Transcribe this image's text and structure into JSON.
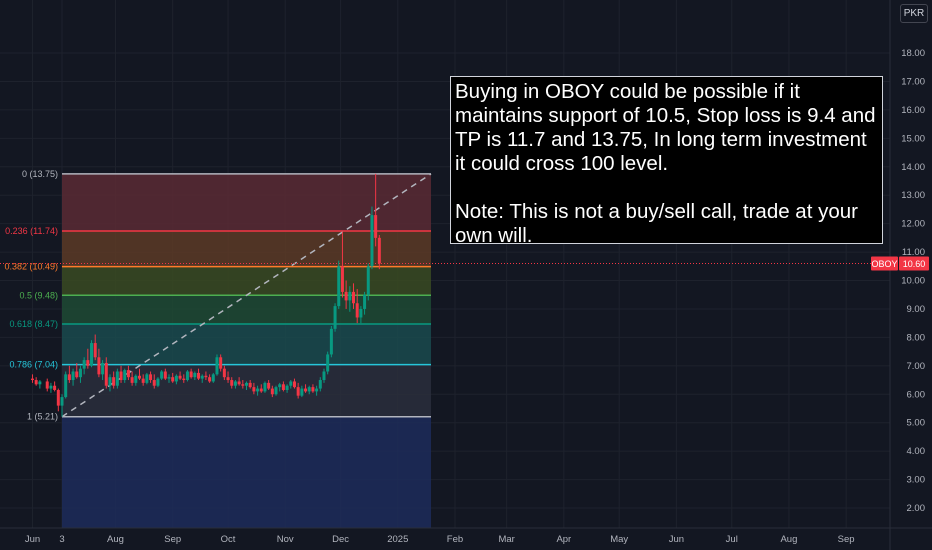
{
  "currency_button": "PKR",
  "note": {
    "paragraph1": "Buying in OBOY could be possible if it maintains support of 10.5, Stop loss is 9.4 and TP is 11.7 and 13.75, In long term investment it could cross 100 level.",
    "paragraph2": "Note: This is not a buy/sell call, trade at your own will."
  },
  "chart_data": {
    "type": "candlestick",
    "symbol": "OBOY",
    "last_price": "10.60",
    "y_ticks": [
      "2.00",
      "3.00",
      "4.00",
      "5.00",
      "6.00",
      "7.00",
      "8.00",
      "9.00",
      "10.00",
      "11.00",
      "12.00",
      "13.00",
      "14.00",
      "15.00",
      "16.00",
      "17.00",
      "18.00"
    ],
    "ylim": [
      1.6,
      18.6
    ],
    "x_ticks": [
      {
        "label": "Jun",
        "date": "2024-06-17"
      },
      {
        "label": "3",
        "date": "2024-07-03"
      },
      {
        "label": "Aug",
        "date": "2024-08-01"
      },
      {
        "label": "Sep",
        "date": "2024-09-01"
      },
      {
        "label": "Oct",
        "date": "2024-10-01"
      },
      {
        "label": "Nov",
        "date": "2024-11-01"
      },
      {
        "label": "Dec",
        "date": "2024-12-01"
      },
      {
        "label": "2025",
        "date": "2025-01-01"
      },
      {
        "label": "Feb",
        "date": "2025-02-01"
      },
      {
        "label": "Mar",
        "date": "2025-03-01"
      },
      {
        "label": "Apr",
        "date": "2025-04-01"
      },
      {
        "label": "May",
        "date": "2025-05-01"
      },
      {
        "label": "Jun",
        "date": "2025-06-01"
      },
      {
        "label": "Jul",
        "date": "2025-07-01"
      },
      {
        "label": "Aug",
        "date": "2025-08-01"
      },
      {
        "label": "Sep",
        "date": "2025-09-01"
      }
    ],
    "fibonacci": {
      "start_date": "2024-07-03",
      "end_date": "2025-01-19",
      "levels": [
        {
          "label": "0 (13.75)",
          "value": 13.75,
          "line": "#b2b5be",
          "fill": "#5a2a34"
        },
        {
          "label": "0.236 (11.74)",
          "value": 11.74,
          "line": "#f23645",
          "fill": "#5c3a26"
        },
        {
          "label": "0.382 (10.49)",
          "value": 10.49,
          "line": "#ff7b2b",
          "fill": "#3a4a22"
        },
        {
          "label": "0.5 (9.48)",
          "value": 9.48,
          "line": "#4caf50",
          "fill": "#1f4a34"
        },
        {
          "label": "0.618 (8.47)",
          "value": 8.47,
          "line": "#089981",
          "fill": "#1a4a4e"
        },
        {
          "label": "0.786 (7.04)",
          "value": 7.04,
          "line": "#26c6da",
          "fill": "#2a2e3c"
        },
        {
          "label": "1 (5.21)",
          "value": 5.21,
          "line": "#b2b5be",
          "fill": "#1d2c5a"
        }
      ]
    },
    "trend_line": {
      "from": {
        "date": "2024-07-03",
        "value": 5.21
      },
      "to": {
        "date": "2025-01-19",
        "value": 13.75
      }
    },
    "candles": [
      {
        "d": "2024-06-17",
        "o": 6.55,
        "h": 6.7,
        "l": 6.4,
        "c": 6.5
      },
      {
        "d": "2024-06-19",
        "o": 6.5,
        "h": 6.6,
        "l": 6.3,
        "c": 6.35
      },
      {
        "d": "2024-06-21",
        "o": 6.35,
        "h": 6.5,
        "l": 6.2,
        "c": 6.45
      },
      {
        "d": "2024-06-25",
        "o": 6.45,
        "h": 6.55,
        "l": 6.1,
        "c": 6.2
      },
      {
        "d": "2024-06-27",
        "o": 6.2,
        "h": 6.4,
        "l": 6.05,
        "c": 6.3
      },
      {
        "d": "2024-06-29",
        "o": 6.3,
        "h": 6.45,
        "l": 6.1,
        "c": 6.15
      },
      {
        "d": "2024-07-01",
        "o": 6.15,
        "h": 6.2,
        "l": 5.4,
        "c": 5.6
      },
      {
        "d": "2024-07-03",
        "o": 5.6,
        "h": 6.0,
        "l": 5.21,
        "c": 5.9
      },
      {
        "d": "2024-07-05",
        "o": 5.9,
        "h": 6.8,
        "l": 5.85,
        "c": 6.7
      },
      {
        "d": "2024-07-07",
        "o": 6.7,
        "h": 7.0,
        "l": 6.4,
        "c": 6.5
      },
      {
        "d": "2024-07-09",
        "o": 6.5,
        "h": 6.9,
        "l": 6.3,
        "c": 6.8
      },
      {
        "d": "2024-07-11",
        "o": 6.8,
        "h": 7.1,
        "l": 6.55,
        "c": 6.6
      },
      {
        "d": "2024-07-13",
        "o": 6.6,
        "h": 7.0,
        "l": 6.4,
        "c": 6.9
      },
      {
        "d": "2024-07-15",
        "o": 6.9,
        "h": 7.3,
        "l": 6.7,
        "c": 7.2
      },
      {
        "d": "2024-07-17",
        "o": 7.2,
        "h": 7.6,
        "l": 6.9,
        "c": 7.0
      },
      {
        "d": "2024-07-19",
        "o": 7.0,
        "h": 7.9,
        "l": 6.95,
        "c": 7.8
      },
      {
        "d": "2024-07-21",
        "o": 7.8,
        "h": 8.1,
        "l": 7.2,
        "c": 7.3
      },
      {
        "d": "2024-07-23",
        "o": 7.3,
        "h": 7.6,
        "l": 6.6,
        "c": 6.7
      },
      {
        "d": "2024-07-25",
        "o": 6.7,
        "h": 7.2,
        "l": 6.5,
        "c": 7.1
      },
      {
        "d": "2024-07-27",
        "o": 7.1,
        "h": 7.3,
        "l": 6.2,
        "c": 6.3
      },
      {
        "d": "2024-07-29",
        "o": 6.3,
        "h": 6.7,
        "l": 6.1,
        "c": 6.6
      },
      {
        "d": "2024-07-31",
        "o": 6.6,
        "h": 6.8,
        "l": 6.2,
        "c": 6.3
      },
      {
        "d": "2024-08-02",
        "o": 6.3,
        "h": 6.9,
        "l": 6.2,
        "c": 6.8
      },
      {
        "d": "2024-08-04",
        "o": 6.8,
        "h": 7.0,
        "l": 6.4,
        "c": 6.5
      },
      {
        "d": "2024-08-06",
        "o": 6.5,
        "h": 6.9,
        "l": 6.4,
        "c": 6.85
      },
      {
        "d": "2024-08-08",
        "o": 6.85,
        "h": 7.0,
        "l": 6.5,
        "c": 6.6
      },
      {
        "d": "2024-08-10",
        "o": 6.6,
        "h": 6.8,
        "l": 6.3,
        "c": 6.4
      },
      {
        "d": "2024-08-12",
        "o": 6.4,
        "h": 6.7,
        "l": 6.3,
        "c": 6.65
      },
      {
        "d": "2024-08-14",
        "o": 6.65,
        "h": 6.9,
        "l": 6.5,
        "c": 6.55
      },
      {
        "d": "2024-08-16",
        "o": 6.55,
        "h": 6.7,
        "l": 6.3,
        "c": 6.4
      },
      {
        "d": "2024-08-18",
        "o": 6.4,
        "h": 6.75,
        "l": 6.35,
        "c": 6.7
      },
      {
        "d": "2024-08-20",
        "o": 6.7,
        "h": 6.8,
        "l": 6.4,
        "c": 6.5
      },
      {
        "d": "2024-08-22",
        "o": 6.5,
        "h": 6.7,
        "l": 6.2,
        "c": 6.3
      },
      {
        "d": "2024-08-24",
        "o": 6.3,
        "h": 6.6,
        "l": 6.25,
        "c": 6.55
      },
      {
        "d": "2024-08-26",
        "o": 6.55,
        "h": 6.85,
        "l": 6.5,
        "c": 6.8
      },
      {
        "d": "2024-08-28",
        "o": 6.8,
        "h": 6.9,
        "l": 6.5,
        "c": 6.55
      },
      {
        "d": "2024-08-30",
        "o": 6.55,
        "h": 6.7,
        "l": 6.4,
        "c": 6.6
      },
      {
        "d": "2024-09-01",
        "o": 6.6,
        "h": 6.75,
        "l": 6.4,
        "c": 6.45
      },
      {
        "d": "2024-09-03",
        "o": 6.45,
        "h": 6.7,
        "l": 6.35,
        "c": 6.65
      },
      {
        "d": "2024-09-05",
        "o": 6.65,
        "h": 6.8,
        "l": 6.5,
        "c": 6.55
      },
      {
        "d": "2024-09-07",
        "o": 6.55,
        "h": 6.7,
        "l": 6.4,
        "c": 6.5
      },
      {
        "d": "2024-09-09",
        "o": 6.5,
        "h": 6.85,
        "l": 6.45,
        "c": 6.8
      },
      {
        "d": "2024-09-11",
        "o": 6.8,
        "h": 6.9,
        "l": 6.55,
        "c": 6.6
      },
      {
        "d": "2024-09-13",
        "o": 6.6,
        "h": 6.8,
        "l": 6.5,
        "c": 6.75
      },
      {
        "d": "2024-09-15",
        "o": 6.75,
        "h": 6.9,
        "l": 6.5,
        "c": 6.55
      },
      {
        "d": "2024-09-17",
        "o": 6.55,
        "h": 6.7,
        "l": 6.4,
        "c": 6.65
      },
      {
        "d": "2024-09-19",
        "o": 6.65,
        "h": 6.8,
        "l": 6.5,
        "c": 6.6
      },
      {
        "d": "2024-09-21",
        "o": 6.6,
        "h": 6.7,
        "l": 6.4,
        "c": 6.45
      },
      {
        "d": "2024-09-23",
        "o": 6.45,
        "h": 6.75,
        "l": 6.4,
        "c": 6.7
      },
      {
        "d": "2024-09-25",
        "o": 6.7,
        "h": 7.4,
        "l": 6.65,
        "c": 7.3
      },
      {
        "d": "2024-09-27",
        "o": 7.3,
        "h": 7.4,
        "l": 6.8,
        "c": 6.9
      },
      {
        "d": "2024-09-29",
        "o": 6.9,
        "h": 7.0,
        "l": 6.5,
        "c": 6.6
      },
      {
        "d": "2024-10-01",
        "o": 6.6,
        "h": 6.8,
        "l": 6.4,
        "c": 6.5
      },
      {
        "d": "2024-10-03",
        "o": 6.5,
        "h": 6.6,
        "l": 6.2,
        "c": 6.3
      },
      {
        "d": "2024-10-05",
        "o": 6.3,
        "h": 6.5,
        "l": 6.2,
        "c": 6.45
      },
      {
        "d": "2024-10-07",
        "o": 6.45,
        "h": 6.6,
        "l": 6.3,
        "c": 6.35
      },
      {
        "d": "2024-10-09",
        "o": 6.35,
        "h": 6.5,
        "l": 6.2,
        "c": 6.3
      },
      {
        "d": "2024-10-11",
        "o": 6.3,
        "h": 6.45,
        "l": 6.15,
        "c": 6.4
      },
      {
        "d": "2024-10-13",
        "o": 6.4,
        "h": 6.5,
        "l": 6.2,
        "c": 6.25
      },
      {
        "d": "2024-10-15",
        "o": 6.25,
        "h": 6.4,
        "l": 6.0,
        "c": 6.1
      },
      {
        "d": "2024-10-17",
        "o": 6.1,
        "h": 6.3,
        "l": 5.95,
        "c": 6.2
      },
      {
        "d": "2024-10-19",
        "o": 6.2,
        "h": 6.35,
        "l": 6.05,
        "c": 6.1
      },
      {
        "d": "2024-10-21",
        "o": 6.1,
        "h": 6.45,
        "l": 6.05,
        "c": 6.4
      },
      {
        "d": "2024-10-23",
        "o": 6.4,
        "h": 6.5,
        "l": 6.15,
        "c": 6.2
      },
      {
        "d": "2024-10-25",
        "o": 6.2,
        "h": 6.3,
        "l": 5.9,
        "c": 6.0
      },
      {
        "d": "2024-10-27",
        "o": 6.0,
        "h": 6.3,
        "l": 5.95,
        "c": 6.25
      },
      {
        "d": "2024-10-29",
        "o": 6.25,
        "h": 6.4,
        "l": 6.1,
        "c": 6.35
      },
      {
        "d": "2024-10-31",
        "o": 6.35,
        "h": 6.45,
        "l": 6.1,
        "c": 6.15
      },
      {
        "d": "2024-11-02",
        "o": 6.15,
        "h": 6.35,
        "l": 6.05,
        "c": 6.3
      },
      {
        "d": "2024-11-04",
        "o": 6.3,
        "h": 6.5,
        "l": 6.2,
        "c": 6.45
      },
      {
        "d": "2024-11-06",
        "o": 6.45,
        "h": 6.55,
        "l": 6.2,
        "c": 6.25
      },
      {
        "d": "2024-11-08",
        "o": 6.25,
        "h": 6.4,
        "l": 5.85,
        "c": 5.95
      },
      {
        "d": "2024-11-10",
        "o": 5.95,
        "h": 6.3,
        "l": 5.9,
        "c": 6.2
      },
      {
        "d": "2024-11-12",
        "o": 6.2,
        "h": 6.35,
        "l": 6.05,
        "c": 6.1
      },
      {
        "d": "2024-11-14",
        "o": 6.1,
        "h": 6.3,
        "l": 6.0,
        "c": 6.25
      },
      {
        "d": "2024-11-16",
        "o": 6.25,
        "h": 6.35,
        "l": 6.05,
        "c": 6.1
      },
      {
        "d": "2024-11-18",
        "o": 6.1,
        "h": 6.3,
        "l": 5.95,
        "c": 6.2
      },
      {
        "d": "2024-11-20",
        "o": 6.2,
        "h": 6.6,
        "l": 6.1,
        "c": 6.5
      },
      {
        "d": "2024-11-22",
        "o": 6.5,
        "h": 6.9,
        "l": 6.4,
        "c": 6.8
      },
      {
        "d": "2024-11-24",
        "o": 6.8,
        "h": 7.5,
        "l": 6.7,
        "c": 7.4
      },
      {
        "d": "2024-11-26",
        "o": 7.4,
        "h": 8.4,
        "l": 7.3,
        "c": 8.3
      },
      {
        "d": "2024-11-28",
        "o": 8.3,
        "h": 9.2,
        "l": 8.2,
        "c": 9.1
      },
      {
        "d": "2024-11-30",
        "o": 9.1,
        "h": 10.7,
        "l": 9.0,
        "c": 10.5
      },
      {
        "d": "2024-12-02",
        "o": 10.5,
        "h": 11.7,
        "l": 9.4,
        "c": 9.6
      },
      {
        "d": "2024-12-04",
        "o": 9.6,
        "h": 10.0,
        "l": 9.0,
        "c": 9.3
      },
      {
        "d": "2024-12-06",
        "o": 9.3,
        "h": 9.8,
        "l": 8.9,
        "c": 9.6
      },
      {
        "d": "2024-12-08",
        "o": 9.6,
        "h": 9.9,
        "l": 9.0,
        "c": 9.2
      },
      {
        "d": "2024-12-10",
        "o": 9.2,
        "h": 9.7,
        "l": 8.5,
        "c": 8.7
      },
      {
        "d": "2024-12-12",
        "o": 8.7,
        "h": 9.1,
        "l": 8.5,
        "c": 9.0
      },
      {
        "d": "2024-12-14",
        "o": 9.0,
        "h": 9.6,
        "l": 8.8,
        "c": 9.5
      },
      {
        "d": "2024-12-16",
        "o": 9.5,
        "h": 10.6,
        "l": 9.3,
        "c": 10.5
      },
      {
        "d": "2024-12-18",
        "o": 10.5,
        "h": 12.6,
        "l": 10.4,
        "c": 12.3
      },
      {
        "d": "2024-12-20",
        "o": 12.3,
        "h": 13.75,
        "l": 11.2,
        "c": 11.5
      },
      {
        "d": "2024-12-22",
        "o": 11.5,
        "h": 11.6,
        "l": 10.4,
        "c": 10.6
      }
    ]
  }
}
